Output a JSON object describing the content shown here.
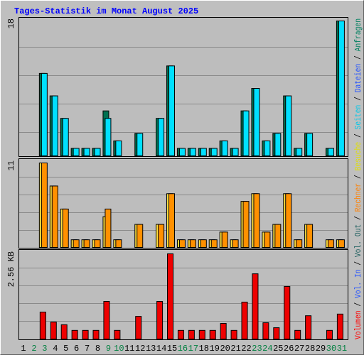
{
  "title": "Tages-Statistik im Monat August 2025",
  "legend_separator": " / ",
  "legend": [
    {
      "name": "Volumen",
      "color": "#ff0000"
    },
    {
      "name": "Vol. In",
      "color": "#2050ff"
    },
    {
      "name": "Vol. Out",
      "color": "#206060"
    },
    {
      "name": "Rechner",
      "color": "#ff8000"
    },
    {
      "name": "Besuche",
      "color": "#e0e000"
    },
    {
      "name": "Seiten",
      "color": "#00c8e8"
    },
    {
      "name": "Dateien",
      "color": "#2050ff"
    },
    {
      "name": "Anfragen",
      "color": "#008060"
    }
  ],
  "chart_data": [
    {
      "type": "bar",
      "ylim": [
        0,
        18
      ],
      "yticks": [
        18
      ],
      "series": [
        {
          "name": "Anfragen",
          "color": "#007050",
          "values": [
            0,
            0,
            11,
            8,
            5,
            1,
            1,
            1,
            6,
            2,
            0,
            3,
            0,
            5,
            12,
            1,
            1,
            1,
            1,
            2,
            1,
            6,
            9,
            2,
            3,
            8,
            1,
            3,
            0,
            1,
            18
          ]
        },
        {
          "name": "Seiten",
          "color": "#00e0ff",
          "values": [
            0,
            0,
            11,
            8,
            5,
            1,
            1,
            1,
            5,
            2,
            0,
            3,
            0,
            5,
            12,
            1,
            1,
            1,
            1,
            2,
            1,
            6,
            9,
            2,
            3,
            8,
            1,
            3,
            0,
            1,
            18
          ]
        }
      ]
    },
    {
      "type": "bar",
      "ylim": [
        0,
        11
      ],
      "yticks": [
        11
      ],
      "series": [
        {
          "name": "Besuche",
          "color": "#ffe040",
          "values": [
            0,
            0,
            11,
            8,
            5,
            1,
            1,
            1,
            4,
            1,
            0,
            3,
            0,
            3,
            7,
            1,
            1,
            1,
            1,
            2,
            1,
            6,
            7,
            2,
            3,
            7,
            1,
            3,
            0,
            1,
            1
          ]
        },
        {
          "name": "Rechner",
          "color": "#ff9000",
          "values": [
            0,
            0,
            11,
            8,
            5,
            1,
            1,
            1,
            5,
            1,
            0,
            3,
            0,
            3,
            7,
            1,
            1,
            1,
            1,
            2,
            1,
            6,
            7,
            2,
            3,
            7,
            1,
            3,
            0,
            1,
            1
          ]
        }
      ]
    },
    {
      "type": "bar",
      "ylim": [
        0,
        2.56
      ],
      "yticks": [
        {
          "value": 2.56,
          "label": "2.56 KB"
        }
      ],
      "categories": [
        "1",
        "2",
        "3",
        "4",
        "5",
        "6",
        "7",
        "8",
        "9",
        "10",
        "11",
        "12",
        "13",
        "14",
        "15",
        "16",
        "17",
        "18",
        "19",
        "20",
        "21",
        "22",
        "23",
        "24",
        "25",
        "26",
        "27",
        "28",
        "29",
        "30",
        "31"
      ],
      "category_colors": [
        "#000000",
        "#008040",
        "#008040",
        "#000000",
        "#000000",
        "#000000",
        "#000000",
        "#000000",
        "#008040",
        "#008040",
        "#000000",
        "#000000",
        "#000000",
        "#000000",
        "#000000",
        "#008040",
        "#008040",
        "#000000",
        "#000000",
        "#000000",
        "#000000",
        "#000000",
        "#008040",
        "#008040",
        "#000000",
        "#000000",
        "#000000",
        "#000000",
        "#000000",
        "#008040",
        "#008040"
      ],
      "series": [
        {
          "name": "Volumen",
          "color": "#ee0000",
          "values": [
            0,
            0,
            0.81,
            0.51,
            0.43,
            0.26,
            0.26,
            0.26,
            1.13,
            0.26,
            0,
            0.68,
            0,
            1.13,
            2.56,
            0.26,
            0.26,
            0.26,
            0.26,
            0.47,
            0.26,
            1.11,
            1.96,
            0.49,
            0.34,
            1.58,
            0.26,
            0.7,
            0,
            0.26,
            0.75
          ]
        }
      ]
    }
  ]
}
